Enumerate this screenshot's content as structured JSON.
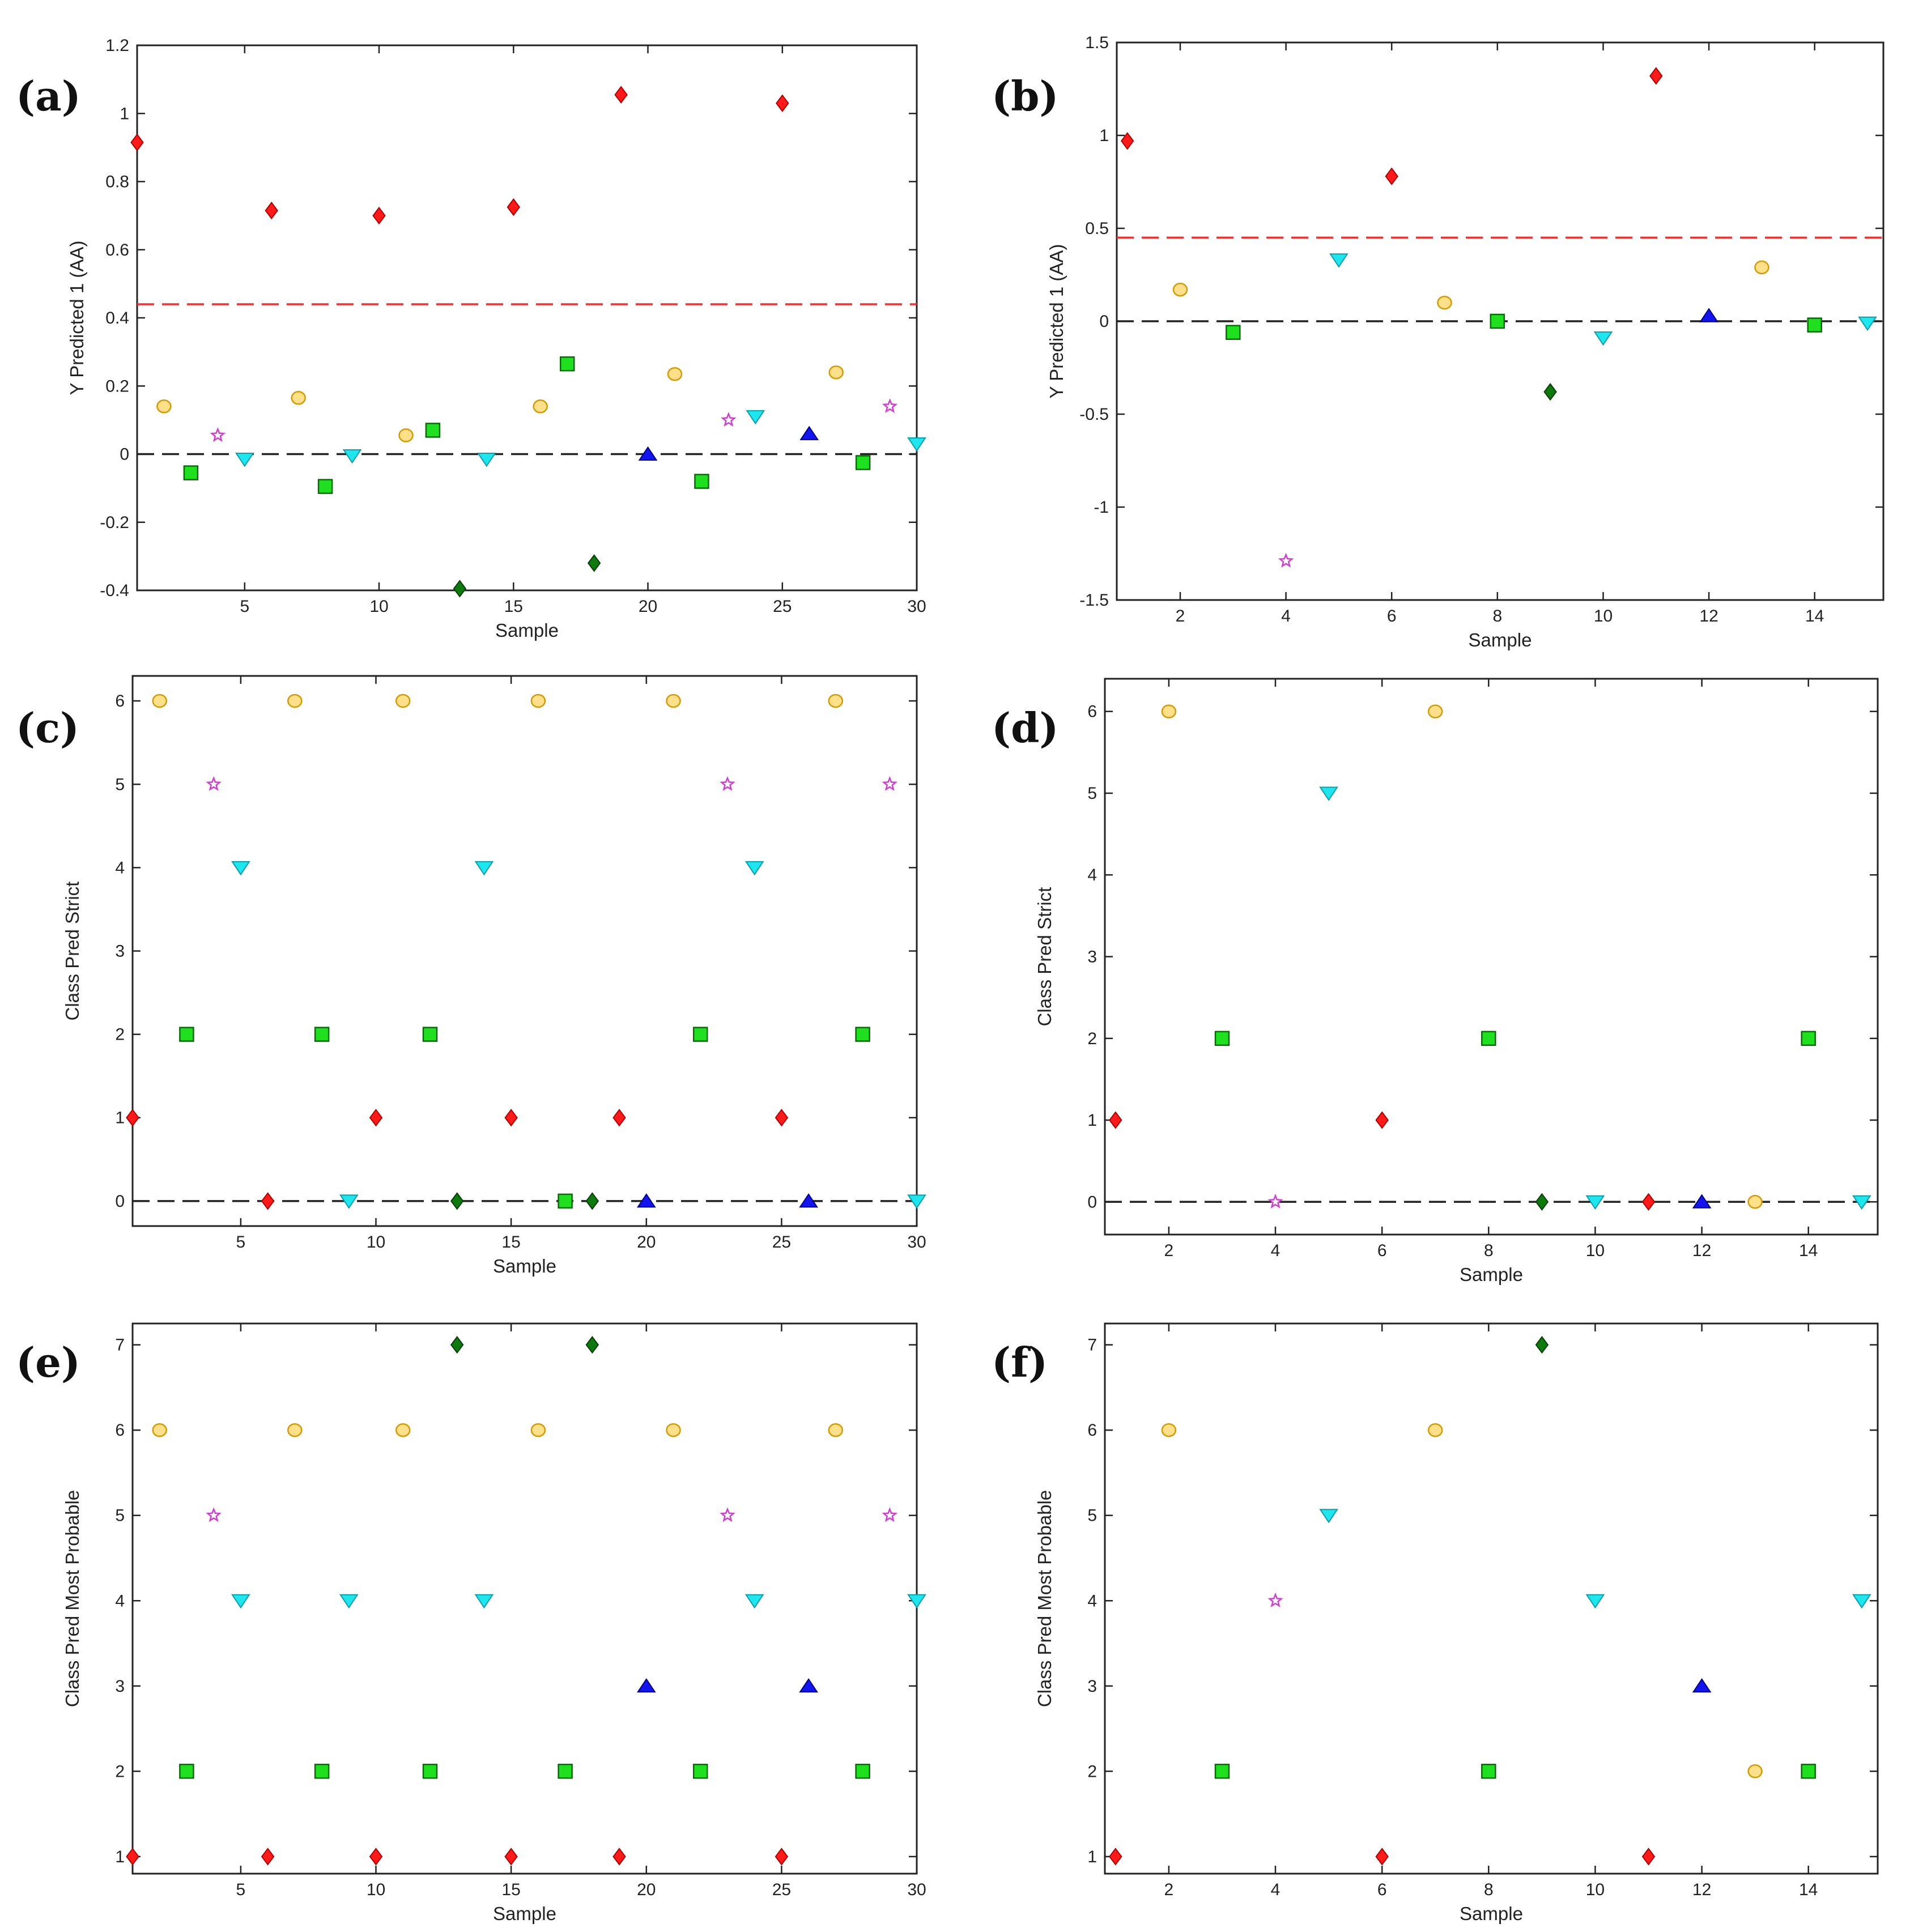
{
  "figure": {
    "colors": {
      "red": "#ff1a1a",
      "green": "#1fe01f",
      "darkgreen": "#0e7a0e",
      "cyan": "#1ee6ee",
      "blue": "#1414ee",
      "yellow": "#ffe08a",
      "yellow_stroke": "#d49a00",
      "magenta": "#d43ad4",
      "ref_red": "#ff2a2a",
      "ref_black": "#222222"
    }
  },
  "chart_data": [
    {
      "id": "a",
      "panel": "(a)",
      "type": "scatter",
      "xlabel": "Sample",
      "ylabel": "Y Predicted 1 (AA)",
      "xlim": [
        1,
        30
      ],
      "ylim": [
        -0.4,
        1.2
      ],
      "xticks": [
        5,
        10,
        15,
        20,
        25,
        30
      ],
      "xtick_labels": [
        "5",
        "10",
        "15",
        "20",
        "25",
        "30"
      ],
      "yticks": [
        -0.4,
        -0.2,
        0,
        0.2,
        0.4,
        0.6,
        0.8,
        1,
        1.2
      ],
      "ytick_labels": [
        "-0.4",
        "-0.2",
        "0",
        "0.2",
        "0.4",
        "0.6",
        "0.8",
        "1",
        "1.2"
      ],
      "ref_lines": [
        {
          "y": 0.44,
          "color": "red"
        },
        {
          "y": 0,
          "color": "black"
        }
      ],
      "points": [
        {
          "x": 1,
          "y": 0.915,
          "m": "diamond",
          "c": "red"
        },
        {
          "x": 2,
          "y": 0.14,
          "m": "circle",
          "c": "yellow"
        },
        {
          "x": 3,
          "y": -0.055,
          "m": "square",
          "c": "green"
        },
        {
          "x": 4,
          "y": 0.055,
          "m": "star",
          "c": "magenta"
        },
        {
          "x": 5,
          "y": -0.015,
          "m": "tri_down",
          "c": "cyan"
        },
        {
          "x": 6,
          "y": 0.715,
          "m": "diamond",
          "c": "red"
        },
        {
          "x": 7,
          "y": 0.165,
          "m": "circle",
          "c": "yellow"
        },
        {
          "x": 8,
          "y": -0.095,
          "m": "square",
          "c": "green"
        },
        {
          "x": 9,
          "y": -0.005,
          "m": "tri_down",
          "c": "cyan"
        },
        {
          "x": 10,
          "y": 0.7,
          "m": "diamond",
          "c": "red"
        },
        {
          "x": 11,
          "y": 0.055,
          "m": "circle",
          "c": "yellow"
        },
        {
          "x": 12,
          "y": 0.07,
          "m": "square",
          "c": "green"
        },
        {
          "x": 13,
          "y": -0.395,
          "m": "diamond",
          "c": "darkgreen"
        },
        {
          "x": 14,
          "y": -0.015,
          "m": "tri_down",
          "c": "cyan"
        },
        {
          "x": 15,
          "y": 0.725,
          "m": "diamond",
          "c": "red"
        },
        {
          "x": 16,
          "y": 0.14,
          "m": "circle",
          "c": "yellow"
        },
        {
          "x": 17,
          "y": 0.265,
          "m": "square",
          "c": "green"
        },
        {
          "x": 18,
          "y": -0.32,
          "m": "diamond",
          "c": "darkgreen"
        },
        {
          "x": 19,
          "y": 1.055,
          "m": "diamond",
          "c": "red"
        },
        {
          "x": 20,
          "y": 0.0,
          "m": "tri_up",
          "c": "blue"
        },
        {
          "x": 21,
          "y": 0.235,
          "m": "circle",
          "c": "yellow"
        },
        {
          "x": 22,
          "y": -0.08,
          "m": "square",
          "c": "green"
        },
        {
          "x": 23,
          "y": 0.1,
          "m": "star",
          "c": "magenta"
        },
        {
          "x": 24,
          "y": 0.11,
          "m": "tri_down",
          "c": "cyan"
        },
        {
          "x": 25,
          "y": 1.03,
          "m": "diamond",
          "c": "red"
        },
        {
          "x": 26,
          "y": 0.06,
          "m": "tri_up",
          "c": "blue"
        },
        {
          "x": 27,
          "y": 0.24,
          "m": "circle",
          "c": "yellow"
        },
        {
          "x": 28,
          "y": -0.025,
          "m": "square",
          "c": "green"
        },
        {
          "x": 29,
          "y": 0.14,
          "m": "star",
          "c": "magenta"
        },
        {
          "x": 30,
          "y": 0.03,
          "m": "tri_down",
          "c": "cyan"
        }
      ]
    },
    {
      "id": "b",
      "panel": "(b)",
      "type": "scatter",
      "xlabel": "Sample",
      "ylabel": "Y Predicted 1 (AA)",
      "xlim": [
        0.8,
        15.3
      ],
      "ylim": [
        -1.5,
        1.5
      ],
      "xticks": [
        2,
        4,
        6,
        8,
        10,
        12,
        14
      ],
      "xtick_labels": [
        "2",
        "4",
        "6",
        "8",
        "10",
        "12",
        "14"
      ],
      "yticks": [
        -1.5,
        -1,
        -0.5,
        0,
        0.5,
        1,
        1.5
      ],
      "ytick_labels": [
        "-1.5",
        "-1",
        "-0.5",
        "0",
        "0.5",
        "1",
        "1.5"
      ],
      "ref_lines": [
        {
          "y": 0.45,
          "color": "red"
        },
        {
          "y": 0,
          "color": "black"
        }
      ],
      "points": [
        {
          "x": 1,
          "y": 0.97,
          "m": "diamond",
          "c": "red"
        },
        {
          "x": 2,
          "y": 0.17,
          "m": "circle",
          "c": "yellow"
        },
        {
          "x": 3,
          "y": -0.06,
          "m": "square",
          "c": "green"
        },
        {
          "x": 4,
          "y": -1.29,
          "m": "star",
          "c": "magenta"
        },
        {
          "x": 5,
          "y": 0.33,
          "m": "tri_down",
          "c": "cyan"
        },
        {
          "x": 6,
          "y": 0.78,
          "m": "diamond",
          "c": "red"
        },
        {
          "x": 7,
          "y": 0.1,
          "m": "circle",
          "c": "yellow"
        },
        {
          "x": 8,
          "y": 0.0,
          "m": "square",
          "c": "green"
        },
        {
          "x": 9,
          "y": -0.38,
          "m": "diamond",
          "c": "darkgreen"
        },
        {
          "x": 10,
          "y": -0.09,
          "m": "tri_down",
          "c": "cyan"
        },
        {
          "x": 11,
          "y": 1.32,
          "m": "diamond",
          "c": "red"
        },
        {
          "x": 12,
          "y": 0.03,
          "m": "tri_up",
          "c": "blue"
        },
        {
          "x": 13,
          "y": 0.29,
          "m": "circle",
          "c": "yellow"
        },
        {
          "x": 14,
          "y": -0.02,
          "m": "square",
          "c": "green"
        },
        {
          "x": 15,
          "y": -0.01,
          "m": "tri_down",
          "c": "cyan"
        }
      ]
    },
    {
      "id": "c",
      "panel": "(c)",
      "type": "scatter",
      "xlabel": "Sample",
      "ylabel": "Class Pred Strict",
      "xlim": [
        1,
        30
      ],
      "ylim": [
        -0.3,
        6.3
      ],
      "xticks": [
        5,
        10,
        15,
        20,
        25,
        30
      ],
      "xtick_labels": [
        "5",
        "10",
        "15",
        "20",
        "25",
        "30"
      ],
      "yticks": [
        0,
        1,
        2,
        3,
        4,
        5,
        6
      ],
      "ytick_labels": [
        "0",
        "1",
        "2",
        "3",
        "4",
        "5",
        "6"
      ],
      "ref_lines": [
        {
          "y": 0,
          "color": "black"
        }
      ],
      "points": [
        {
          "x": 1,
          "y": 1,
          "m": "diamond",
          "c": "red"
        },
        {
          "x": 2,
          "y": 6,
          "m": "circle",
          "c": "yellow"
        },
        {
          "x": 3,
          "y": 2,
          "m": "square",
          "c": "green"
        },
        {
          "x": 4,
          "y": 5,
          "m": "star",
          "c": "magenta"
        },
        {
          "x": 5,
          "y": 4,
          "m": "tri_down",
          "c": "cyan"
        },
        {
          "x": 6,
          "y": 0,
          "m": "diamond",
          "c": "red"
        },
        {
          "x": 7,
          "y": 6,
          "m": "circle",
          "c": "yellow"
        },
        {
          "x": 8,
          "y": 2,
          "m": "square",
          "c": "green"
        },
        {
          "x": 9,
          "y": 0,
          "m": "tri_down",
          "c": "cyan"
        },
        {
          "x": 10,
          "y": 1,
          "m": "diamond",
          "c": "red"
        },
        {
          "x": 11,
          "y": 6,
          "m": "circle",
          "c": "yellow"
        },
        {
          "x": 12,
          "y": 2,
          "m": "square",
          "c": "green"
        },
        {
          "x": 13,
          "y": 0,
          "m": "diamond",
          "c": "darkgreen"
        },
        {
          "x": 14,
          "y": 4,
          "m": "tri_down",
          "c": "cyan"
        },
        {
          "x": 15,
          "y": 1,
          "m": "diamond",
          "c": "red"
        },
        {
          "x": 16,
          "y": 6,
          "m": "circle",
          "c": "yellow"
        },
        {
          "x": 17,
          "y": 0,
          "m": "square",
          "c": "green"
        },
        {
          "x": 18,
          "y": 0,
          "m": "diamond",
          "c": "darkgreen"
        },
        {
          "x": 19,
          "y": 1,
          "m": "diamond",
          "c": "red"
        },
        {
          "x": 20,
          "y": 0,
          "m": "tri_up",
          "c": "blue"
        },
        {
          "x": 21,
          "y": 6,
          "m": "circle",
          "c": "yellow"
        },
        {
          "x": 22,
          "y": 2,
          "m": "square",
          "c": "green"
        },
        {
          "x": 23,
          "y": 5,
          "m": "star",
          "c": "magenta"
        },
        {
          "x": 24,
          "y": 4,
          "m": "tri_down",
          "c": "cyan"
        },
        {
          "x": 25,
          "y": 1,
          "m": "diamond",
          "c": "red"
        },
        {
          "x": 26,
          "y": 0,
          "m": "tri_up",
          "c": "blue"
        },
        {
          "x": 27,
          "y": 6,
          "m": "circle",
          "c": "yellow"
        },
        {
          "x": 28,
          "y": 2,
          "m": "square",
          "c": "green"
        },
        {
          "x": 29,
          "y": 5,
          "m": "star",
          "c": "magenta"
        },
        {
          "x": 30,
          "y": 0,
          "m": "tri_down",
          "c": "cyan"
        }
      ]
    },
    {
      "id": "d",
      "panel": "(d)",
      "type": "scatter",
      "xlabel": "Sample",
      "ylabel": "Class Pred Strict",
      "xlim": [
        0.8,
        15.3
      ],
      "ylim": [
        -0.4,
        6.4
      ],
      "xticks": [
        2,
        4,
        6,
        8,
        10,
        12,
        14
      ],
      "xtick_labels": [
        "2",
        "4",
        "6",
        "8",
        "10",
        "12",
        "14"
      ],
      "yticks": [
        0,
        1,
        2,
        3,
        4,
        5,
        6
      ],
      "ytick_labels": [
        "0",
        "1",
        "2",
        "3",
        "4",
        "5",
        "6"
      ],
      "ref_lines": [
        {
          "y": 0,
          "color": "black"
        }
      ],
      "points": [
        {
          "x": 1,
          "y": 1,
          "m": "diamond",
          "c": "red"
        },
        {
          "x": 2,
          "y": 6,
          "m": "circle",
          "c": "yellow"
        },
        {
          "x": 3,
          "y": 2,
          "m": "square",
          "c": "green"
        },
        {
          "x": 4,
          "y": 0,
          "m": "star",
          "c": "magenta"
        },
        {
          "x": 5,
          "y": 5,
          "m": "tri_down",
          "c": "cyan"
        },
        {
          "x": 6,
          "y": 1,
          "m": "diamond",
          "c": "red"
        },
        {
          "x": 7,
          "y": 6,
          "m": "circle",
          "c": "yellow"
        },
        {
          "x": 8,
          "y": 2,
          "m": "square",
          "c": "green"
        },
        {
          "x": 9,
          "y": 0,
          "m": "diamond",
          "c": "darkgreen"
        },
        {
          "x": 10,
          "y": 0,
          "m": "tri_down",
          "c": "cyan"
        },
        {
          "x": 11,
          "y": 0,
          "m": "diamond",
          "c": "red"
        },
        {
          "x": 12,
          "y": 0,
          "m": "tri_up",
          "c": "blue"
        },
        {
          "x": 13,
          "y": 0,
          "m": "circle",
          "c": "yellow"
        },
        {
          "x": 14,
          "y": 2,
          "m": "square",
          "c": "green"
        },
        {
          "x": 15,
          "y": 0,
          "m": "tri_down",
          "c": "cyan"
        }
      ]
    },
    {
      "id": "e",
      "panel": "(e)",
      "type": "scatter",
      "xlabel": "Sample",
      "ylabel": "Class Pred Most Probable",
      "xlim": [
        1,
        30
      ],
      "ylim": [
        0.8,
        7.25
      ],
      "xticks": [
        5,
        10,
        15,
        20,
        25,
        30
      ],
      "xtick_labels": [
        "5",
        "10",
        "15",
        "20",
        "25",
        "30"
      ],
      "yticks": [
        1,
        2,
        3,
        4,
        5,
        6,
        7
      ],
      "ytick_labels": [
        "1",
        "2",
        "3",
        "4",
        "5",
        "6",
        "7"
      ],
      "ref_lines": [],
      "points": [
        {
          "x": 1,
          "y": 1,
          "m": "diamond",
          "c": "red"
        },
        {
          "x": 2,
          "y": 6,
          "m": "circle",
          "c": "yellow"
        },
        {
          "x": 3,
          "y": 2,
          "m": "square",
          "c": "green"
        },
        {
          "x": 4,
          "y": 5,
          "m": "star",
          "c": "magenta"
        },
        {
          "x": 5,
          "y": 4,
          "m": "tri_down",
          "c": "cyan"
        },
        {
          "x": 6,
          "y": 1,
          "m": "diamond",
          "c": "red"
        },
        {
          "x": 7,
          "y": 6,
          "m": "circle",
          "c": "yellow"
        },
        {
          "x": 8,
          "y": 2,
          "m": "square",
          "c": "green"
        },
        {
          "x": 9,
          "y": 4,
          "m": "tri_down",
          "c": "cyan"
        },
        {
          "x": 10,
          "y": 1,
          "m": "diamond",
          "c": "red"
        },
        {
          "x": 11,
          "y": 6,
          "m": "circle",
          "c": "yellow"
        },
        {
          "x": 12,
          "y": 2,
          "m": "square",
          "c": "green"
        },
        {
          "x": 13,
          "y": 7,
          "m": "diamond",
          "c": "darkgreen"
        },
        {
          "x": 14,
          "y": 4,
          "m": "tri_down",
          "c": "cyan"
        },
        {
          "x": 15,
          "y": 1,
          "m": "diamond",
          "c": "red"
        },
        {
          "x": 16,
          "y": 6,
          "m": "circle",
          "c": "yellow"
        },
        {
          "x": 17,
          "y": 2,
          "m": "square",
          "c": "green"
        },
        {
          "x": 18,
          "y": 7,
          "m": "diamond",
          "c": "darkgreen"
        },
        {
          "x": 19,
          "y": 1,
          "m": "diamond",
          "c": "red"
        },
        {
          "x": 20,
          "y": 3,
          "m": "tri_up",
          "c": "blue"
        },
        {
          "x": 21,
          "y": 6,
          "m": "circle",
          "c": "yellow"
        },
        {
          "x": 22,
          "y": 2,
          "m": "square",
          "c": "green"
        },
        {
          "x": 23,
          "y": 5,
          "m": "star",
          "c": "magenta"
        },
        {
          "x": 24,
          "y": 4,
          "m": "tri_down",
          "c": "cyan"
        },
        {
          "x": 25,
          "y": 1,
          "m": "diamond",
          "c": "red"
        },
        {
          "x": 26,
          "y": 3,
          "m": "tri_up",
          "c": "blue"
        },
        {
          "x": 27,
          "y": 6,
          "m": "circle",
          "c": "yellow"
        },
        {
          "x": 28,
          "y": 2,
          "m": "square",
          "c": "green"
        },
        {
          "x": 29,
          "y": 5,
          "m": "star",
          "c": "magenta"
        },
        {
          "x": 30,
          "y": 4,
          "m": "tri_down",
          "c": "cyan"
        }
      ]
    },
    {
      "id": "f",
      "panel": "(f)",
      "type": "scatter",
      "xlabel": "Sample",
      "ylabel": "Class Pred Most Probable",
      "xlim": [
        0.8,
        15.3
      ],
      "ylim": [
        0.8,
        7.25
      ],
      "xticks": [
        2,
        4,
        6,
        8,
        10,
        12,
        14
      ],
      "xtick_labels": [
        "2",
        "4",
        "6",
        "8",
        "10",
        "12",
        "14"
      ],
      "yticks": [
        1,
        2,
        3,
        4,
        5,
        6,
        7
      ],
      "ytick_labels": [
        "1",
        "2",
        "3",
        "4",
        "5",
        "6",
        "7"
      ],
      "ref_lines": [],
      "points": [
        {
          "x": 1,
          "y": 1,
          "m": "diamond",
          "c": "red"
        },
        {
          "x": 2,
          "y": 6,
          "m": "circle",
          "c": "yellow"
        },
        {
          "x": 3,
          "y": 2,
          "m": "square",
          "c": "green"
        },
        {
          "x": 4,
          "y": 4,
          "m": "star",
          "c": "magenta"
        },
        {
          "x": 5,
          "y": 5,
          "m": "tri_down",
          "c": "cyan"
        },
        {
          "x": 6,
          "y": 1,
          "m": "diamond",
          "c": "red"
        },
        {
          "x": 7,
          "y": 6,
          "m": "circle",
          "c": "yellow"
        },
        {
          "x": 8,
          "y": 2,
          "m": "square",
          "c": "green"
        },
        {
          "x": 9,
          "y": 7,
          "m": "diamond",
          "c": "darkgreen"
        },
        {
          "x": 10,
          "y": 4,
          "m": "tri_down",
          "c": "cyan"
        },
        {
          "x": 11,
          "y": 1,
          "m": "diamond",
          "c": "red"
        },
        {
          "x": 12,
          "y": 3,
          "m": "tri_up",
          "c": "blue"
        },
        {
          "x": 13,
          "y": 2,
          "m": "circle",
          "c": "yellow"
        },
        {
          "x": 14,
          "y": 2,
          "m": "square",
          "c": "green"
        },
        {
          "x": 15,
          "y": 4,
          "m": "tri_down",
          "c": "cyan"
        }
      ]
    }
  ]
}
